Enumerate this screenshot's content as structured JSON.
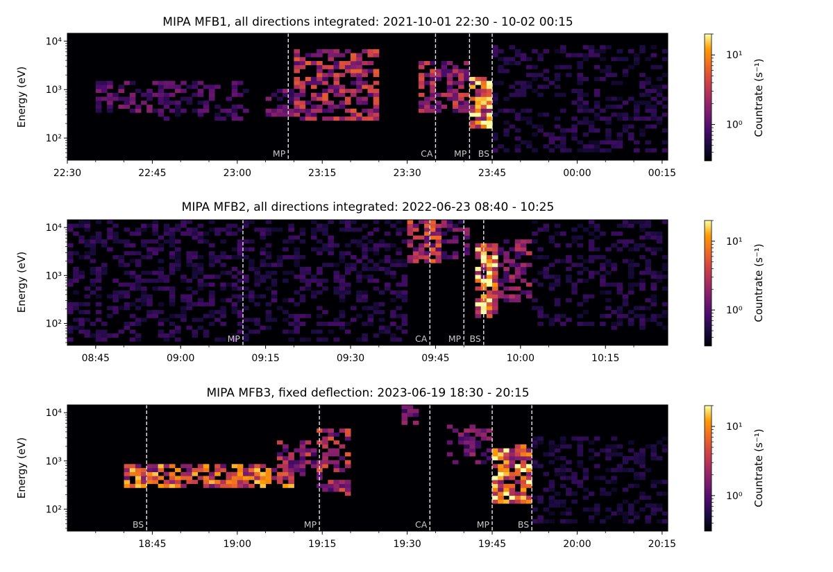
{
  "figure": {
    "ylabel": "Energy (eV)",
    "colorbar_label": "Countrate (s⁻¹)",
    "colorbar_ticks": [
      "10¹",
      "10⁰"
    ],
    "colormap": "inferno"
  },
  "chart_data": [
    {
      "type": "heatmap",
      "title": "MIPA MFB1, all directions integrated: 2021-10-01 22:30 - 10-02 00:15",
      "xlabel": "",
      "ylabel": "Energy (eV)",
      "x_unit": "minutes from 2021-10-01 22:30",
      "xlim": [
        0,
        106
      ],
      "xticks": [
        {
          "v": 0,
          "label": "22:30"
        },
        {
          "v": 15,
          "label": "22:45"
        },
        {
          "v": 30,
          "label": "23:00"
        },
        {
          "v": 45,
          "label": "23:15"
        },
        {
          "v": 60,
          "label": "23:30"
        },
        {
          "v": 75,
          "label": "23:45"
        },
        {
          "v": 90,
          "label": "00:00"
        },
        {
          "v": 105,
          "label": "00:15"
        }
      ],
      "yscale": "log",
      "ylim": [
        35,
        14500
      ],
      "yticks": [
        {
          "v": 100,
          "label": "10²"
        },
        {
          "v": 1000,
          "label": "10³"
        },
        {
          "v": 10000,
          "label": "10⁴"
        }
      ],
      "colorbar": {
        "scale": "log",
        "range": [
          0.3,
          20
        ],
        "ticks": [
          1,
          10
        ]
      },
      "events": [
        {
          "label": "MP",
          "t": 39
        },
        {
          "label": "CA",
          "t": 65
        },
        {
          "label": "MP",
          "t": 71
        },
        {
          "label": "BS",
          "t": 75
        }
      ],
      "activity": [
        {
          "t0": 5,
          "t1": 20,
          "e0": 350,
          "e1": 1300,
          "peak": 0.4
        },
        {
          "t0": 16,
          "t1": 32,
          "e0": 250,
          "e1": 1300,
          "peak": 0.3
        },
        {
          "t0": 35,
          "t1": 40,
          "e0": 300,
          "e1": 1200,
          "peak": 0.4
        },
        {
          "t0": 40,
          "t1": 55,
          "e0": 250,
          "e1": 6000,
          "peak": 0.65
        },
        {
          "t0": 62,
          "t1": 71,
          "e0": 350,
          "e1": 3500,
          "peak": 0.6
        },
        {
          "t0": 71,
          "t1": 75,
          "e0": 180,
          "e1": 1600,
          "peak": 1.0
        },
        {
          "t0": 75,
          "t1": 106,
          "e0": 60,
          "e1": 8000,
          "peak": 0.2
        }
      ]
    },
    {
      "type": "heatmap",
      "title": "MIPA MFB2, all directions integrated: 2022-06-23 08:40 - 10:25",
      "xlabel": "",
      "ylabel": "Energy (eV)",
      "x_unit": "minutes from 2022-06-23 08:40",
      "xlim": [
        0,
        106
      ],
      "xticks": [
        {
          "v": 5,
          "label": "08:45"
        },
        {
          "v": 20,
          "label": "09:00"
        },
        {
          "v": 35,
          "label": "09:15"
        },
        {
          "v": 50,
          "label": "09:30"
        },
        {
          "v": 65,
          "label": "09:45"
        },
        {
          "v": 80,
          "label": "10:00"
        },
        {
          "v": 95,
          "label": "10:15"
        }
      ],
      "yscale": "log",
      "ylim": [
        35,
        14500
      ],
      "yticks": [
        {
          "v": 100,
          "label": "10²"
        },
        {
          "v": 1000,
          "label": "10³"
        },
        {
          "v": 10000,
          "label": "10⁴"
        }
      ],
      "colorbar": {
        "scale": "log",
        "range": [
          0.3,
          20
        ],
        "ticks": [
          1,
          10
        ]
      },
      "events": [
        {
          "label": "MP",
          "t": 31
        },
        {
          "label": "CA",
          "t": 64
        },
        {
          "label": "MP",
          "t": 70
        },
        {
          "label": "BS",
          "t": 73.5
        }
      ],
      "activity": [
        {
          "t0": 0,
          "t1": 60,
          "e0": 50,
          "e1": 14000,
          "peak": 0.22
        },
        {
          "t0": 60,
          "t1": 66,
          "e0": 2000,
          "e1": 14000,
          "peak": 0.7
        },
        {
          "t0": 66,
          "t1": 71,
          "e0": 2500,
          "e1": 14000,
          "peak": 0.45
        },
        {
          "t0": 72,
          "t1": 76,
          "e0": 150,
          "e1": 4000,
          "peak": 1.0
        },
        {
          "t0": 76,
          "t1": 82,
          "e0": 300,
          "e1": 5000,
          "peak": 0.55
        },
        {
          "t0": 82,
          "t1": 106,
          "e0": 80,
          "e1": 14000,
          "peak": 0.2
        }
      ]
    },
    {
      "type": "heatmap",
      "title": "MIPA MFB3, fixed deflection: 2023-06-19 18:30 - 20:15",
      "xlabel": "",
      "ylabel": "Energy (eV)",
      "x_unit": "minutes from 2023-06-19 18:30",
      "xlim": [
        0,
        106
      ],
      "xticks": [
        {
          "v": 15,
          "label": "18:45"
        },
        {
          "v": 30,
          "label": "19:00"
        },
        {
          "v": 45,
          "label": "19:15"
        },
        {
          "v": 60,
          "label": "19:30"
        },
        {
          "v": 75,
          "label": "19:45"
        },
        {
          "v": 90,
          "label": "20:00"
        },
        {
          "v": 105,
          "label": "20:15"
        }
      ],
      "yscale": "log",
      "ylim": [
        35,
        14500
      ],
      "yticks": [
        {
          "v": 100,
          "label": "10²"
        },
        {
          "v": 1000,
          "label": "10³"
        },
        {
          "v": 10000,
          "label": "10⁴"
        }
      ],
      "colorbar": {
        "scale": "log",
        "range": [
          0.3,
          20
        ],
        "ticks": [
          1,
          10
        ]
      },
      "events": [
        {
          "label": "BS",
          "t": 14
        },
        {
          "label": "MP",
          "t": 44.5
        },
        {
          "label": "CA",
          "t": 64
        },
        {
          "label": "MP",
          "t": 75
        },
        {
          "label": "BS",
          "t": 82
        }
      ],
      "activity": [
        {
          "t0": 10,
          "t1": 40,
          "e0": 280,
          "e1": 800,
          "peak": 0.85
        },
        {
          "t0": 37,
          "t1": 44,
          "e0": 500,
          "e1": 2500,
          "peak": 0.6
        },
        {
          "t0": 44,
          "t1": 50,
          "e0": 200,
          "e1": 4500,
          "peak": 0.65
        },
        {
          "t0": 59,
          "t1": 62,
          "e0": 5000,
          "e1": 14000,
          "peak": 0.5
        },
        {
          "t0": 67,
          "t1": 75,
          "e0": 1000,
          "e1": 5000,
          "peak": 0.45
        },
        {
          "t0": 75,
          "t1": 82,
          "e0": 150,
          "e1": 2000,
          "peak": 1.0
        },
        {
          "t0": 82,
          "t1": 106,
          "e0": 60,
          "e1": 3000,
          "peak": 0.18
        }
      ]
    }
  ]
}
